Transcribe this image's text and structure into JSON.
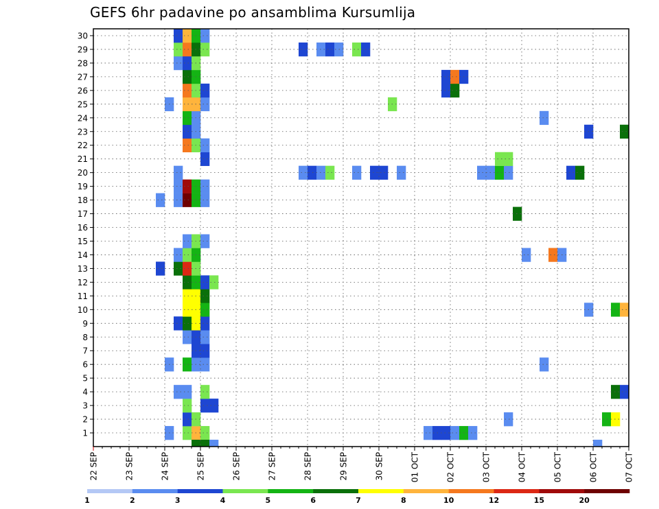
{
  "chart_data": {
    "type": "heatmap",
    "title": "GEFS 6hr padavine po ansamblima Kursumlija",
    "xlabel": "",
    "ylabel": "",
    "x_start": "22 SEP 00Z",
    "x_step_hours": 6,
    "x_tick_labels": [
      "22 SEP",
      "23 SEP",
      "24 SEP",
      "25 SEP",
      "26 SEP",
      "27 SEP",
      "28 SEP",
      "29 SEP",
      "30 SEP",
      "01 OCT",
      "02 OCT",
      "03 OCT",
      "04 OCT",
      "05 OCT",
      "06 OCT",
      "07 OCT"
    ],
    "y_members": [
      1,
      2,
      3,
      4,
      5,
      6,
      7,
      8,
      9,
      10,
      11,
      12,
      13,
      14,
      15,
      16,
      17,
      18,
      19,
      20,
      21,
      22,
      23,
      24,
      25,
      26,
      27,
      28,
      29,
      30
    ],
    "grid": true,
    "legend_position": "bottom",
    "colorbar": {
      "labels": [
        "1",
        "2",
        "3",
        "4",
        "5",
        "6",
        "7",
        "8",
        "10",
        "12",
        "15",
        "20"
      ],
      "colors": [
        "#b4c8f5",
        "#5a8cf0",
        "#1e46d2",
        "#7ae650",
        "#14b414",
        "#0a700a",
        "#ffff00",
        "#ffb43c",
        "#f5781e",
        "#dc2814",
        "#a00a0a",
        "#6e0000"
      ]
    },
    "cells": [
      [
        1,
        8,
        1
      ],
      [
        1,
        10,
        3
      ],
      [
        1,
        11,
        7
      ],
      [
        1,
        12,
        3
      ],
      [
        1,
        37,
        1
      ],
      [
        1,
        38,
        2
      ],
      [
        1,
        39,
        2
      ],
      [
        1,
        40,
        1
      ],
      [
        1,
        41,
        4
      ],
      [
        1,
        42,
        1
      ],
      [
        2,
        10,
        2
      ],
      [
        2,
        11,
        3
      ],
      [
        2,
        46,
        1
      ],
      [
        2,
        57,
        4
      ],
      [
        2,
        58,
        6
      ],
      [
        3,
        10,
        3
      ],
      [
        3,
        12,
        2
      ],
      [
        3,
        13,
        2
      ],
      [
        4,
        9,
        1
      ],
      [
        4,
        10,
        1
      ],
      [
        4,
        12,
        3
      ],
      [
        4,
        58,
        5
      ],
      [
        4,
        59,
        2
      ],
      [
        6,
        8,
        1
      ],
      [
        6,
        10,
        4
      ],
      [
        6,
        11,
        1
      ],
      [
        6,
        12,
        1
      ],
      [
        6,
        50,
        1
      ],
      [
        7,
        11,
        2
      ],
      [
        7,
        12,
        2
      ],
      [
        8,
        10,
        1
      ],
      [
        8,
        11,
        2
      ],
      [
        8,
        12,
        1
      ],
      [
        9,
        9,
        2
      ],
      [
        9,
        10,
        5
      ],
      [
        9,
        11,
        6
      ],
      [
        9,
        12,
        2
      ],
      [
        10,
        10,
        6
      ],
      [
        10,
        11,
        6
      ],
      [
        10,
        12,
        4
      ],
      [
        10,
        55,
        1
      ],
      [
        10,
        58,
        4
      ],
      [
        10,
        59,
        7
      ],
      [
        11,
        10,
        6
      ],
      [
        11,
        11,
        6
      ],
      [
        11,
        12,
        5
      ],
      [
        12,
        10,
        5
      ],
      [
        12,
        11,
        4
      ],
      [
        12,
        12,
        2
      ],
      [
        12,
        13,
        3
      ],
      [
        13,
        7,
        2
      ],
      [
        13,
        9,
        5
      ],
      [
        13,
        10,
        9
      ],
      [
        13,
        11,
        3
      ],
      [
        14,
        9,
        1
      ],
      [
        14,
        10,
        3
      ],
      [
        14,
        11,
        4
      ],
      [
        14,
        48,
        1
      ],
      [
        14,
        51,
        8
      ],
      [
        14,
        52,
        1
      ],
      [
        15,
        10,
        1
      ],
      [
        15,
        11,
        3
      ],
      [
        15,
        12,
        1
      ],
      [
        17,
        47,
        5
      ],
      [
        18,
        7,
        1
      ],
      [
        18,
        9,
        1
      ],
      [
        18,
        10,
        11
      ],
      [
        18,
        11,
        4
      ],
      [
        18,
        12,
        1
      ],
      [
        19,
        9,
        1
      ],
      [
        19,
        10,
        10
      ],
      [
        19,
        11,
        4
      ],
      [
        19,
        12,
        1
      ],
      [
        20,
        9,
        1
      ],
      [
        20,
        23,
        1
      ],
      [
        20,
        24,
        2
      ],
      [
        20,
        25,
        1
      ],
      [
        20,
        26,
        3
      ],
      [
        20,
        29,
        1
      ],
      [
        20,
        31,
        2
      ],
      [
        20,
        32,
        2
      ],
      [
        20,
        34,
        1
      ],
      [
        20,
        43,
        1
      ],
      [
        20,
        44,
        1
      ],
      [
        20,
        45,
        4
      ],
      [
        20,
        46,
        1
      ],
      [
        20,
        53,
        2
      ],
      [
        20,
        54,
        5
      ],
      [
        21,
        12,
        2
      ],
      [
        21,
        45,
        3
      ],
      [
        21,
        46,
        3
      ],
      [
        22,
        10,
        8
      ],
      [
        22,
        11,
        3
      ],
      [
        22,
        12,
        1
      ],
      [
        23,
        10,
        2
      ],
      [
        23,
        11,
        1
      ],
      [
        23,
        55,
        2
      ],
      [
        23,
        59,
        5
      ],
      [
        24,
        10,
        4
      ],
      [
        24,
        11,
        1
      ],
      [
        24,
        50,
        1
      ],
      [
        25,
        8,
        1
      ],
      [
        25,
        10,
        7
      ],
      [
        25,
        11,
        7
      ],
      [
        25,
        12,
        1
      ],
      [
        25,
        33,
        3
      ],
      [
        26,
        10,
        8
      ],
      [
        26,
        11,
        3
      ],
      [
        26,
        12,
        2
      ],
      [
        26,
        39,
        2
      ],
      [
        26,
        40,
        5
      ],
      [
        27,
        10,
        5
      ],
      [
        27,
        11,
        4
      ],
      [
        27,
        39,
        2
      ],
      [
        27,
        40,
        8
      ],
      [
        27,
        41,
        2
      ],
      [
        28,
        9,
        1
      ],
      [
        28,
        10,
        2
      ],
      [
        28,
        11,
        3
      ],
      [
        29,
        9,
        3
      ],
      [
        29,
        10,
        8
      ],
      [
        29,
        11,
        5
      ],
      [
        29,
        12,
        3
      ],
      [
        29,
        23,
        2
      ],
      [
        29,
        25,
        1
      ],
      [
        29,
        26,
        2
      ],
      [
        29,
        27,
        1
      ],
      [
        29,
        29,
        3
      ],
      [
        29,
        30,
        2
      ],
      [
        30,
        9,
        2
      ],
      [
        30,
        10,
        7
      ],
      [
        30,
        11,
        4
      ],
      [
        30,
        12,
        1
      ]
    ],
    "cells_below_axis": [
      [
        11,
        5
      ],
      [
        12,
        5
      ],
      [
        13,
        1
      ],
      [
        56,
        1
      ]
    ]
  }
}
